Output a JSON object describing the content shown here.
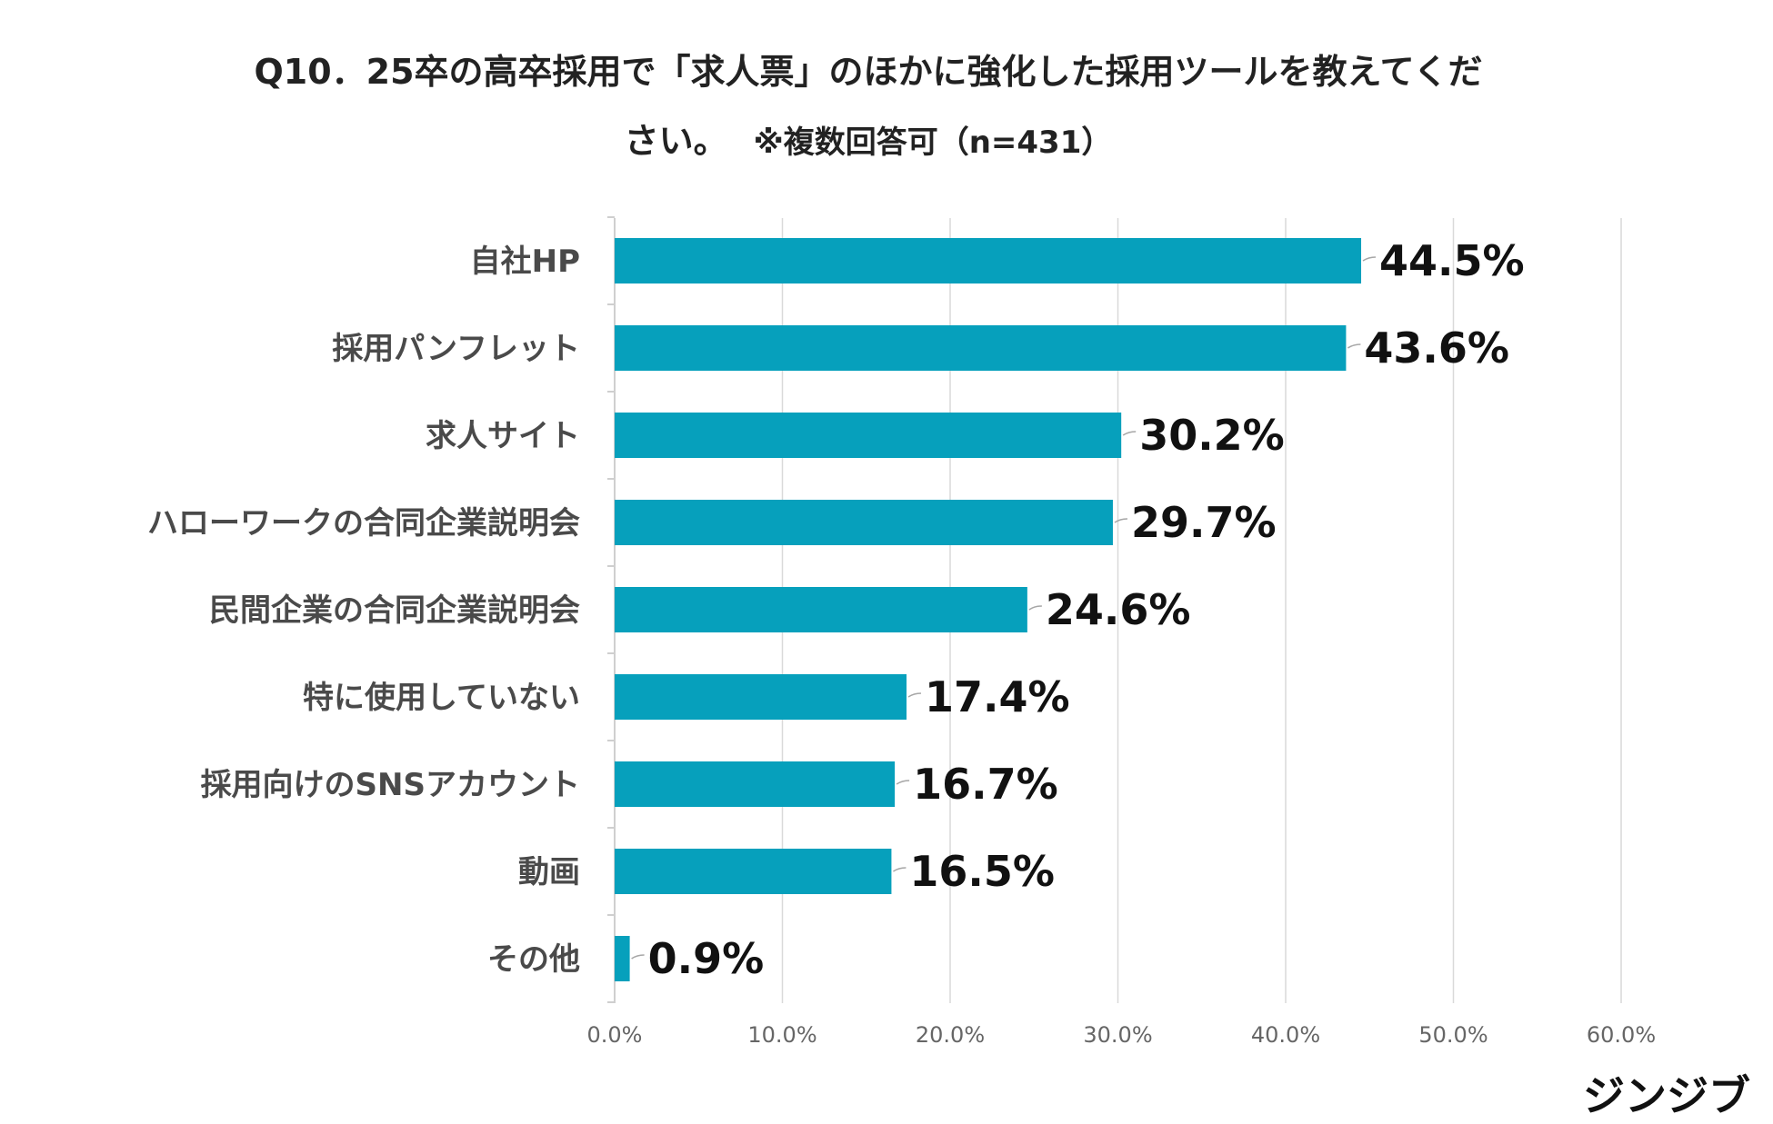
{
  "chart_data": {
    "type": "bar",
    "orientation": "horizontal",
    "title_line1": "Q10．25卒の高卒採用で「求人票」のほかに強化した採用ツールを教えてくだ",
    "title_line2": "さい。",
    "title_note": "※複数回答可（n=431）",
    "categories": [
      "自社HP",
      "採用パンフレット",
      "求人サイト",
      "ハローワークの合同企業説明会",
      "民間企業の合同企業説明会",
      "特に使用していない",
      "採用向けのSNSアカウント",
      "動画",
      "その他"
    ],
    "values": [
      44.5,
      43.6,
      30.2,
      29.7,
      24.6,
      17.4,
      16.7,
      16.5,
      0.9
    ],
    "value_labels": [
      "44.5%",
      "43.6%",
      "30.2%",
      "29.7%",
      "24.6%",
      "17.4%",
      "16.7%",
      "16.5%",
      "0.9%"
    ],
    "xlim": [
      0,
      60
    ],
    "xticks": [
      0,
      10,
      20,
      30,
      40,
      50,
      60
    ],
    "xtick_labels": [
      "0.0%",
      "10.0%",
      "20.0%",
      "30.0%",
      "40.0%",
      "50.0%",
      "60.0%"
    ],
    "bar_color": "#06a0bc",
    "grid": true
  },
  "brand": {
    "name": "ジンジブ"
  }
}
